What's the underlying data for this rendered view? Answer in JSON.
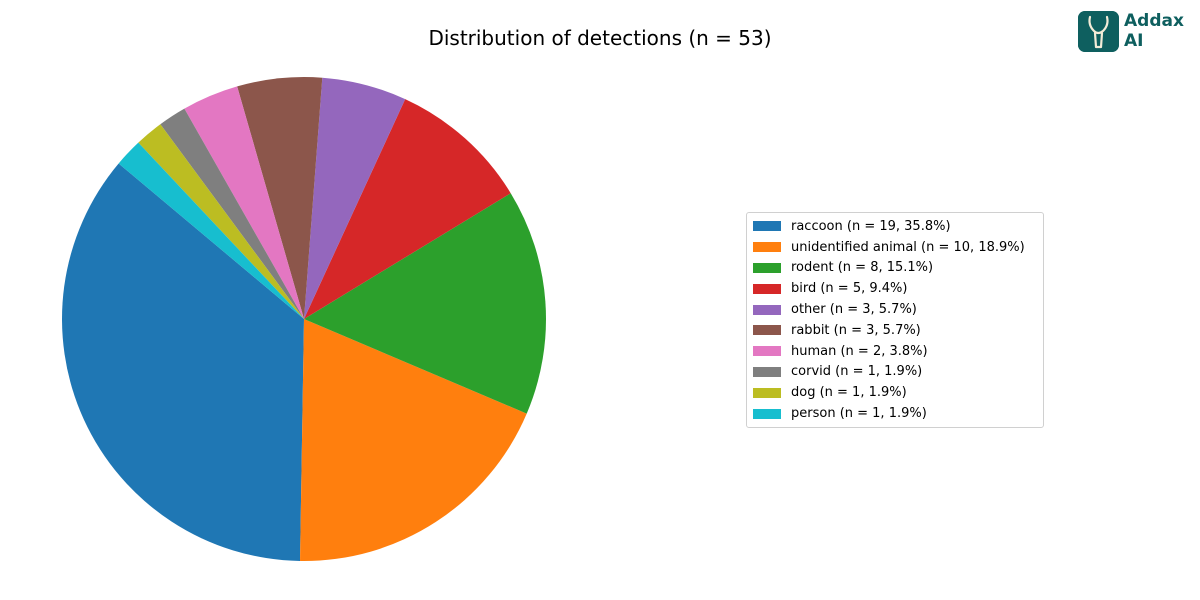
{
  "chart_data": {
    "type": "pie",
    "title": "Distribution of detections (n = 53)",
    "total": 53,
    "start_angle_deg": 140,
    "direction": "counterclockwise",
    "legend_position": "right",
    "slices": [
      {
        "label": "raccoon",
        "value": 19,
        "percent": 35.8,
        "color": "#1f77b4",
        "legend": "raccoon (n = 19, 35.8%)"
      },
      {
        "label": "unidentified animal",
        "value": 10,
        "percent": 18.9,
        "color": "#ff7f0e",
        "legend": "unidentified animal (n = 10, 18.9%)"
      },
      {
        "label": "rodent",
        "value": 8,
        "percent": 15.1,
        "color": "#2ca02c",
        "legend": "rodent (n = 8, 15.1%)"
      },
      {
        "label": "bird",
        "value": 5,
        "percent": 9.4,
        "color": "#d62728",
        "legend": "bird (n = 5, 9.4%)"
      },
      {
        "label": "other",
        "value": 3,
        "percent": 5.7,
        "color": "#9467bd",
        "legend": "other (n = 3, 5.7%)"
      },
      {
        "label": "rabbit",
        "value": 3,
        "percent": 5.7,
        "color": "#8c564b",
        "legend": "rabbit (n = 3, 5.7%)"
      },
      {
        "label": "human",
        "value": 2,
        "percent": 3.8,
        "color": "#e377c2",
        "legend": "human (n = 2, 3.8%)"
      },
      {
        "label": "corvid",
        "value": 1,
        "percent": 1.9,
        "color": "#7f7f7f",
        "legend": "corvid (n = 1, 1.9%)"
      },
      {
        "label": "dog",
        "value": 1,
        "percent": 1.9,
        "color": "#bcbd22",
        "legend": "dog (n = 1, 1.9%)"
      },
      {
        "label": "person",
        "value": 1,
        "percent": 1.9,
        "color": "#17becf",
        "legend": "person (n = 1, 1.9%)"
      }
    ]
  },
  "logo": {
    "line1": "Addax",
    "line2": "AI",
    "color": "#0e5f5f",
    "icon": "antelope-icon"
  }
}
